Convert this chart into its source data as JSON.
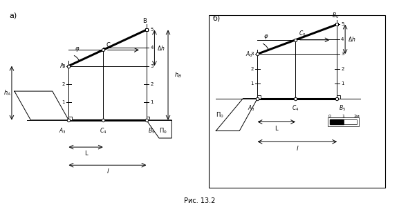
{
  "fig_width": 5.77,
  "fig_height": 2.97,
  "dpi": 100,
  "bg_color": "#ffffff",
  "line_color": "#000000",
  "thick_lw": 2.2,
  "thin_lw": 0.7,
  "label_a": "а)",
  "label_b": "б)",
  "caption": "Рис. 13.2"
}
